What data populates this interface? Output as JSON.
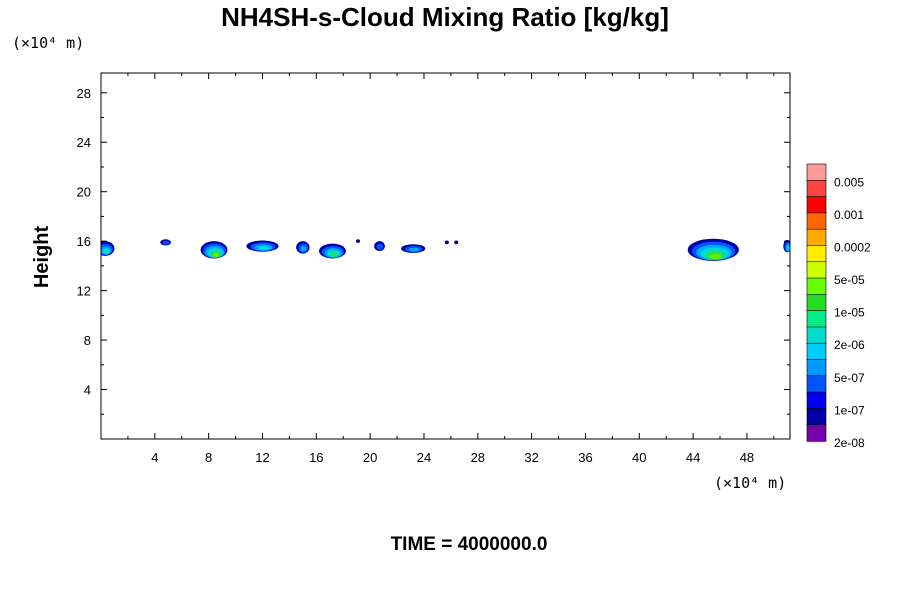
{
  "chart_data": {
    "type": "heatmap",
    "title": "NH4SH-s-Cloud Mixing Ratio [kg/kg]",
    "ylabel": "Height",
    "y_unit_label": "(×10⁴ m)",
    "x_unit_label": "(×10⁴ m)",
    "time_label": "TIME = 4000000.0",
    "xlim": [
      0,
      51.2
    ],
    "ylim": [
      0,
      29.6
    ],
    "x_ticks": [
      4,
      8,
      12,
      16,
      20,
      24,
      28,
      32,
      36,
      40,
      44,
      48
    ],
    "y_ticks": [
      4,
      8,
      12,
      16,
      20,
      24,
      28
    ],
    "colorbar": {
      "labels": [
        "0.005",
        "0.001",
        "0.0002",
        "5e-05",
        "1e-05",
        "2e-06",
        "5e-07",
        "1e-07",
        "2e-08"
      ],
      "colors": [
        "#ff9999",
        "#ff4444",
        "#ff0000",
        "#ff6600",
        "#ffaa00",
        "#ffee00",
        "#ccff00",
        "#66ff00",
        "#22dd22",
        "#00ee88",
        "#00ddcc",
        "#00ccff",
        "#0099ff",
        "#0055ff",
        "#0000ee",
        "#0000aa",
        "#7700aa"
      ]
    },
    "clouds": [
      {
        "x": 0.3,
        "y": 15.4,
        "w": 1.4,
        "h": 1.2,
        "level": "2e-06"
      },
      {
        "x": 4.8,
        "y": 15.9,
        "w": 0.8,
        "h": 0.5,
        "level": "1e-07"
      },
      {
        "x": 8.4,
        "y": 15.3,
        "w": 2.0,
        "h": 1.4,
        "level": "5e-05"
      },
      {
        "x": 12.0,
        "y": 15.6,
        "w": 2.4,
        "h": 0.9,
        "level": "2e-06"
      },
      {
        "x": 15.0,
        "y": 15.5,
        "w": 1.0,
        "h": 1.0,
        "level": "5e-07"
      },
      {
        "x": 17.2,
        "y": 15.2,
        "w": 2.0,
        "h": 1.2,
        "level": "1e-05"
      },
      {
        "x": 19.1,
        "y": 16.0,
        "w": 0.3,
        "h": 0.3,
        "level": "2e-08"
      },
      {
        "x": 20.7,
        "y": 15.6,
        "w": 0.8,
        "h": 0.8,
        "level": "1e-07"
      },
      {
        "x": 23.2,
        "y": 15.4,
        "w": 1.8,
        "h": 0.7,
        "level": "5e-07"
      },
      {
        "x": 25.7,
        "y": 15.9,
        "w": 0.3,
        "h": 0.3,
        "level": "2e-08"
      },
      {
        "x": 26.4,
        "y": 15.9,
        "w": 0.3,
        "h": 0.3,
        "level": "2e-08"
      },
      {
        "x": 45.5,
        "y": 15.3,
        "w": 3.8,
        "h": 1.8,
        "level": "5e-05"
      },
      {
        "x": 51.0,
        "y": 15.6,
        "w": 0.6,
        "h": 1.0,
        "level": "2e-06"
      }
    ]
  }
}
